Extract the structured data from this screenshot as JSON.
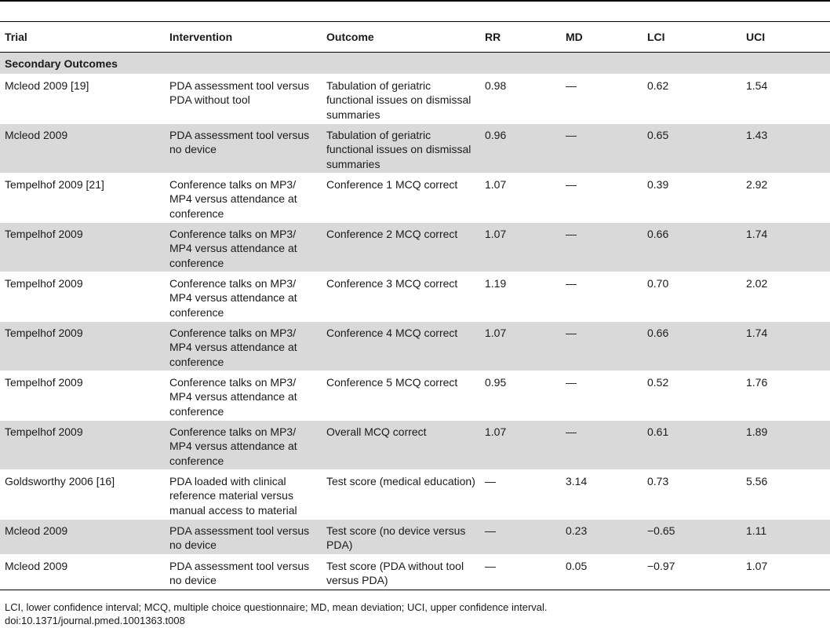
{
  "table": {
    "headers": {
      "trial": "Trial",
      "intervention": "Intervention",
      "outcome": "Outcome",
      "rr": "RR",
      "md": "MD",
      "lci": "LCI",
      "uci": "UCI"
    },
    "section_label": "Secondary Outcomes",
    "rows": [
      {
        "trial": "Mcleod 2009 [19]",
        "intervention": "PDA assessment tool versus PDA without tool",
        "outcome": "Tabulation of geriatric functional issues on dismissal summaries",
        "rr": "0.98",
        "md": "—",
        "lci": "0.62",
        "uci": "1.54"
      },
      {
        "trial": "Mcleod 2009",
        "intervention": "PDA assessment tool versus no device",
        "outcome": "Tabulation of geriatric functional issues on dismissal summaries",
        "rr": "0.96",
        "md": "—",
        "lci": "0.65",
        "uci": "1.43"
      },
      {
        "trial": "Tempelhof 2009 [21]",
        "intervention": "Conference talks on MP3/ MP4 versus attendance at conference",
        "outcome": "Conference 1 MCQ correct",
        "rr": "1.07",
        "md": "—",
        "lci": "0.39",
        "uci": "2.92"
      },
      {
        "trial": "Tempelhof 2009",
        "intervention": "Conference talks on MP3/ MP4 versus attendance at conference",
        "outcome": "Conference 2 MCQ correct",
        "rr": "1.07",
        "md": "—",
        "lci": "0.66",
        "uci": "1.74"
      },
      {
        "trial": "Tempelhof 2009",
        "intervention": "Conference talks on MP3/ MP4 versus attendance at conference",
        "outcome": "Conference 3 MCQ correct",
        "rr": "1.19",
        "md": "—",
        "lci": "0.70",
        "uci": "2.02"
      },
      {
        "trial": "Tempelhof 2009",
        "intervention": "Conference talks on MP3/ MP4 versus attendance at conference",
        "outcome": "Conference 4 MCQ correct",
        "rr": "1.07",
        "md": "—",
        "lci": "0.66",
        "uci": "1.74"
      },
      {
        "trial": "Tempelhof 2009",
        "intervention": "Conference talks on MP3/ MP4 versus attendance at conference",
        "outcome": "Conference 5 MCQ correct",
        "rr": "0.95",
        "md": "—",
        "lci": "0.52",
        "uci": "1.76"
      },
      {
        "trial": "Tempelhof 2009",
        "intervention": "Conference talks on MP3/ MP4 versus attendance at conference",
        "outcome": "Overall MCQ correct",
        "rr": "1.07",
        "md": "—",
        "lci": "0.61",
        "uci": "1.89"
      },
      {
        "trial": "Goldsworthy 2006 [16]",
        "intervention": "PDA loaded with clinical reference material versus manual access to material",
        "outcome": "Test score (medical education)",
        "rr": "—",
        "md": "3.14",
        "lci": "0.73",
        "uci": "5.56"
      },
      {
        "trial": "Mcleod 2009",
        "intervention": "PDA assessment tool versus no device",
        "outcome": "Test score (no device versus PDA)",
        "rr": "—",
        "md": "0.23",
        "lci": "−0.65",
        "uci": "1.11"
      },
      {
        "trial": "Mcleod 2009",
        "intervention": "PDA assessment tool versus no device",
        "outcome": "Test score (PDA without tool versus PDA)",
        "rr": "—",
        "md": "0.05",
        "lci": "−0.97",
        "uci": "1.07"
      }
    ]
  },
  "footnote": "LCI, lower confidence interval; MCQ, multiple choice questionnaire; MD, mean deviation; UCI, upper confidence interval.",
  "doi": "doi:10.1371/journal.pmed.1001363.t008",
  "colors": {
    "shade": "#d9d9d9",
    "rule": "#000000"
  }
}
